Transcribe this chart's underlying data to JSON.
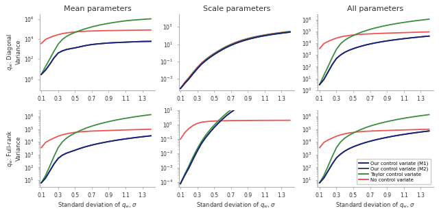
{
  "col_titles": [
    "Mean parameters",
    "Scale parameters",
    "All parameters"
  ],
  "row_ylabels": [
    "$q_w$: Diagonal\nVariance",
    "$q_w$: Full-rank\nVariance"
  ],
  "xlabel": "Standard deviation of $q_w$, $\\sigma$",
  "sigma": [
    0.1,
    0.15,
    0.2,
    0.25,
    0.3,
    0.35,
    0.4,
    0.45,
    0.5,
    0.55,
    0.6,
    0.65,
    0.7,
    0.75,
    0.8,
    0.85,
    0.9,
    0.95,
    1.0,
    1.05,
    1.1,
    1.15,
    1.2,
    1.25,
    1.3,
    1.35,
    1.4
  ],
  "curves": {
    "diag_mean": {
      "M1": [
        3,
        8,
        30,
        130,
        400,
        650,
        900,
        1100,
        1300,
        1600,
        2000,
        2400,
        2800,
        3100,
        3400,
        3700,
        4000,
        4200,
        4400,
        4600,
        4800,
        5000,
        5200,
        5400,
        5600,
        5700,
        5800
      ],
      "M2": [
        3,
        8,
        30,
        130,
        400,
        650,
        900,
        1100,
        1300,
        1600,
        2000,
        2400,
        2800,
        3100,
        3400,
        3700,
        4000,
        4200,
        4400,
        4600,
        4800,
        5000,
        5200,
        5400,
        5600,
        5700,
        5800
      ],
      "Taylor": [
        3,
        18,
        100,
        600,
        3000,
        9000,
        18000,
        30000,
        45000,
        65000,
        90000,
        120000,
        160000,
        200000,
        250000,
        300000,
        360000,
        420000,
        490000,
        560000,
        630000,
        700000,
        760000,
        820000,
        880000,
        940000,
        1000000
      ],
      "NoCV": [
        3500,
        9000,
        14000,
        20000,
        27000,
        34000,
        40000,
        45000,
        50000,
        54000,
        57000,
        60000,
        62000,
        64000,
        66000,
        67000,
        68000,
        69000,
        70000,
        71000,
        72000,
        73000,
        74000,
        75000,
        76000,
        77000,
        78000
      ]
    },
    "diag_scale": {
      "M1": [
        8e-05,
        0.0003,
        0.001,
        0.004,
        0.015,
        0.05,
        0.13,
        0.3,
        0.65,
        1.3,
        2.5,
        4.5,
        7.5,
        12,
        18,
        26,
        36,
        48,
        62,
        78,
        96,
        116,
        138,
        162,
        188,
        216,
        247
      ],
      "M2": [
        8e-05,
        0.0003,
        0.001,
        0.004,
        0.015,
        0.05,
        0.13,
        0.3,
        0.65,
        1.3,
        2.5,
        4.5,
        7.5,
        12,
        18,
        26,
        36,
        48,
        62,
        78,
        96,
        116,
        138,
        162,
        188,
        216,
        247
      ],
      "Taylor": [
        8e-05,
        0.0003,
        0.0012,
        0.005,
        0.018,
        0.058,
        0.155,
        0.37,
        0.8,
        1.6,
        3.0,
        5.5,
        9,
        14,
        21,
        30,
        42,
        56,
        72,
        90,
        110,
        133,
        158,
        185,
        214,
        245,
        280
      ],
      "NoCV": [
        8e-05,
        0.0004,
        0.0015,
        0.006,
        0.022,
        0.07,
        0.18,
        0.42,
        0.88,
        1.75,
        3.3,
        6,
        10,
        16,
        24,
        34,
        46,
        61,
        78,
        97,
        119,
        143,
        170,
        198,
        229,
        263,
        300
      ]
    },
    "diag_all": {
      "M1": [
        3,
        8,
        35,
        150,
        500,
        1000,
        1700,
        2500,
        3400,
        4500,
        5700,
        7100,
        8600,
        10200,
        11900,
        13700,
        15600,
        17600,
        19700,
        21900,
        24200,
        26600,
        29100,
        31700,
        34400,
        37200,
        40100
      ],
      "M2": [
        3,
        8,
        35,
        150,
        500,
        1000,
        1700,
        2500,
        3400,
        4500,
        5700,
        7100,
        8600,
        10200,
        11900,
        13700,
        15600,
        17600,
        19700,
        21900,
        24200,
        26600,
        29100,
        31700,
        34400,
        37200,
        40100
      ],
      "Taylor": [
        3,
        18,
        100,
        600,
        3000,
        9000,
        18000,
        30000,
        45000,
        64000,
        88000,
        116000,
        150000,
        188000,
        230000,
        278000,
        330000,
        386000,
        447000,
        513000,
        583000,
        658000,
        737000,
        820000,
        907000,
        998000,
        1093000
      ],
      "NoCV": [
        3500,
        9000,
        14000,
        20000,
        27000,
        34000,
        40000,
        45000,
        50000,
        54000,
        57000,
        60000,
        62000,
        65000,
        67000,
        69000,
        71000,
        73000,
        75000,
        77000,
        79000,
        81000,
        83000,
        85000,
        87000,
        89000,
        91000
      ]
    },
    "full_mean": {
      "M1": [
        6,
        14,
        50,
        180,
        500,
        900,
        1300,
        1700,
        2200,
        2900,
        3700,
        4600,
        5600,
        6700,
        7900,
        9200,
        10600,
        12100,
        13700,
        15400,
        17200,
        19100,
        21100,
        23200,
        25400,
        27700,
        30100
      ],
      "M2": [
        6,
        14,
        50,
        180,
        500,
        900,
        1300,
        1700,
        2200,
        2900,
        3700,
        4600,
        5600,
        6700,
        7900,
        9200,
        10600,
        12100,
        13700,
        15400,
        17200,
        19100,
        21100,
        23200,
        25400,
        27700,
        30100
      ],
      "Taylor": [
        6,
        22,
        120,
        700,
        3500,
        10000,
        20000,
        33000,
        50000,
        72000,
        100000,
        135000,
        175000,
        220000,
        272000,
        330000,
        395000,
        466000,
        544000,
        629000,
        720000,
        818000,
        922000,
        1032000,
        1148000,
        1270000,
        1398000
      ],
      "NoCV": [
        3500,
        9000,
        14000,
        20000,
        28000,
        36000,
        43000,
        50000,
        56000,
        61000,
        65000,
        68000,
        71000,
        73000,
        75000,
        77000,
        79000,
        81000,
        83000,
        85000,
        87000,
        89000,
        91000,
        93000,
        95000,
        97000,
        99000
      ]
    },
    "full_scale": {
      "M1": [
        8e-05,
        0.0003,
        0.001,
        0.004,
        0.015,
        0.05,
        0.13,
        0.3,
        0.65,
        1.3,
        2.5,
        4.5,
        7.5,
        12,
        18,
        26,
        36,
        48,
        62,
        78,
        96,
        116,
        138,
        162,
        188,
        216,
        247
      ],
      "M2": [
        8e-05,
        0.0003,
        0.001,
        0.004,
        0.015,
        0.05,
        0.13,
        0.3,
        0.65,
        1.3,
        2.5,
        4.5,
        7.5,
        12,
        18,
        26,
        36,
        48,
        62,
        78,
        96,
        116,
        138,
        162,
        188,
        216,
        247
      ],
      "Taylor": [
        8e-05,
        0.00035,
        0.0014,
        0.006,
        0.022,
        0.07,
        0.19,
        0.44,
        0.95,
        1.9,
        3.6,
        6.5,
        11,
        17,
        25,
        36,
        50,
        66,
        85,
        106,
        130,
        157,
        186,
        218,
        252,
        289,
        330
      ],
      "NoCV": [
        0.1,
        0.28,
        0.55,
        0.9,
        1.25,
        1.5,
        1.65,
        1.75,
        1.82,
        1.87,
        1.91,
        1.94,
        1.96,
        1.97,
        1.98,
        1.99,
        2.0,
        2.01,
        2.02,
        2.03,
        2.03,
        2.04,
        2.04,
        2.05,
        2.05,
        2.06,
        2.06
      ]
    },
    "full_all": {
      "M1": [
        6,
        14,
        50,
        180,
        550,
        1100,
        1900,
        2900,
        4100,
        5500,
        7200,
        9100,
        11300,
        13700,
        16400,
        19400,
        22700,
        26300,
        30200,
        34400,
        38900,
        43700,
        48800,
        54200,
        59900,
        65900,
        72200
      ],
      "M2": [
        6,
        14,
        50,
        180,
        550,
        1100,
        1900,
        2900,
        4100,
        5500,
        7200,
        9100,
        11300,
        13700,
        16400,
        19400,
        22700,
        26300,
        30200,
        34400,
        38900,
        43700,
        48800,
        54200,
        59900,
        65900,
        72200
      ],
      "Taylor": [
        6,
        22,
        120,
        700,
        3500,
        10000,
        20000,
        33000,
        50000,
        72000,
        100000,
        135000,
        175000,
        220000,
        272000,
        330000,
        395000,
        466000,
        544000,
        629000,
        720000,
        818000,
        922000,
        1032000,
        1148000,
        1270000,
        1398000
      ],
      "NoCV": [
        3500,
        9000,
        14000,
        20000,
        28000,
        36000,
        43000,
        50000,
        56000,
        61000,
        65000,
        68000,
        71000,
        73000,
        75000,
        77000,
        79000,
        81000,
        83000,
        85000,
        87000,
        89000,
        91000,
        93000,
        95000,
        97000,
        99000
      ]
    }
  },
  "colors": {
    "M1": "#1a237e",
    "M2": "#37474f",
    "Taylor": "#388e3c",
    "NoCV": "#ef5350"
  },
  "legend_labels": {
    "M1": "Our control variate (M1)",
    "M2": "Our control variate (M2)",
    "Taylor": "Taylor control variate",
    "NoCV": "No control variate"
  },
  "xticks": [
    0.1,
    0.3,
    0.5,
    0.7,
    0.9,
    1.1,
    1.3
  ],
  "xlim": [
    0.08,
    1.45
  ],
  "ylims": {
    "diag_mean": [
      0.08,
      3000000.0
    ],
    "diag_scale": [
      5e-05,
      30000.0
    ],
    "diag_all": [
      1,
      3000000.0
    ],
    "full_mean": [
      3,
      3000000.0
    ],
    "full_scale": [
      5e-05,
      10
    ],
    "full_all": [
      3,
      3000000.0
    ]
  },
  "background": "#ffffff"
}
